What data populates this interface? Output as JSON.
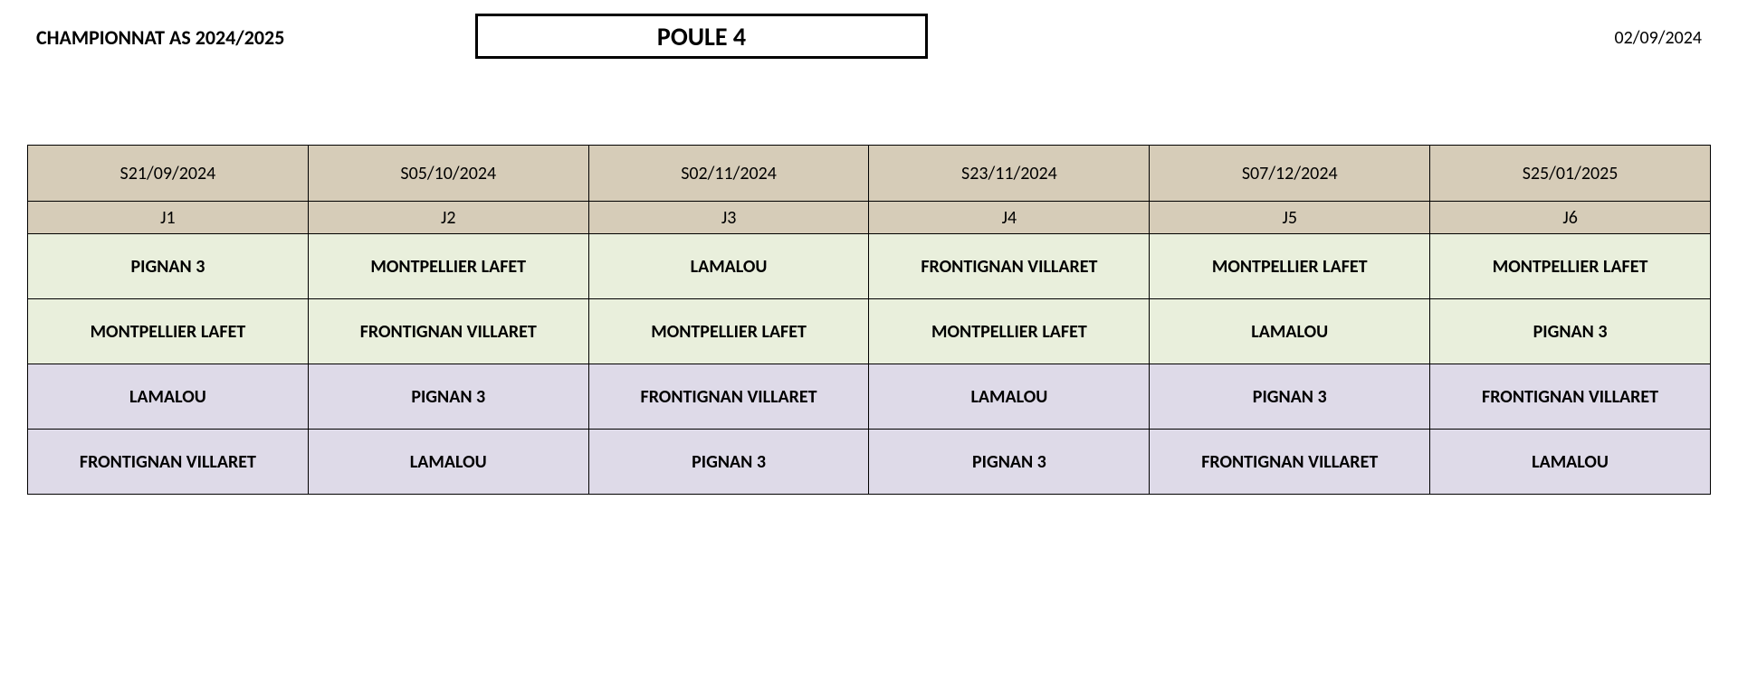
{
  "header": {
    "championship_title": "CHAMPIONNAT  AS 2024/2025",
    "poule_title": "POULE 4",
    "document_date": "02/09/2024"
  },
  "table": {
    "colors": {
      "header_bg": "#d6ccb8",
      "green_bg": "#e9efdc",
      "purple_bg": "#dedae8",
      "border": "#000000"
    },
    "columns": 6,
    "dates": [
      "S21/09/2024",
      "S05/10/2024",
      "S02/11/2024",
      "S23/11/2024",
      "S07/12/2024",
      "S25/01/2025"
    ],
    "rounds": [
      "J1",
      "J2",
      "J3",
      "J4",
      "J5",
      "J6"
    ],
    "rows": [
      {
        "color_class": "row-green",
        "teams": [
          "PIGNAN 3",
          "MONTPELLIER LAFET",
          "LAMALOU",
          "FRONTIGNAN VILLARET",
          "MONTPELLIER LAFET",
          "MONTPELLIER LAFET"
        ]
      },
      {
        "color_class": "row-green",
        "teams": [
          "MONTPELLIER LAFET",
          "FRONTIGNAN VILLARET",
          "MONTPELLIER LAFET",
          "MONTPELLIER LAFET",
          "LAMALOU",
          "PIGNAN 3"
        ]
      },
      {
        "color_class": "row-purple",
        "teams": [
          "LAMALOU",
          "PIGNAN 3",
          "FRONTIGNAN VILLARET",
          "LAMALOU",
          "PIGNAN 3",
          "FRONTIGNAN VILLARET"
        ]
      },
      {
        "color_class": "row-purple",
        "teams": [
          "FRONTIGNAN VILLARET",
          "LAMALOU",
          "PIGNAN 3",
          "PIGNAN 3",
          "FRONTIGNAN VILLARET",
          "LAMALOU"
        ]
      }
    ]
  }
}
